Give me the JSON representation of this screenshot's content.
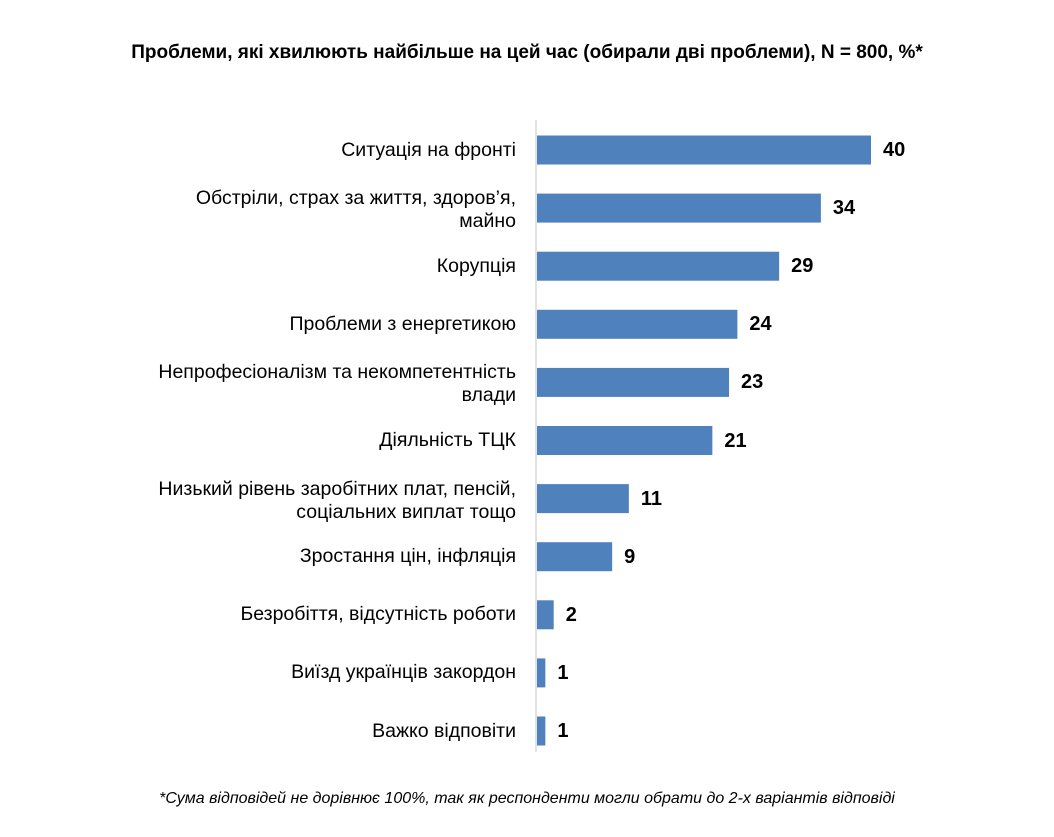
{
  "chart_data": {
    "type": "bar",
    "orientation": "horizontal",
    "title": "Проблеми, які хвилюють найбільше на цей час (обирали дві проблеми), N = 800, %*",
    "categories": [
      "Ситуація на фронті",
      "Обстріли, страх за життя, здоров’я,\nмайно",
      "Корупція",
      "Проблеми з енергетикою",
      "Непрофесіоналізм та некомпетентність\nвлади",
      "Діяльність ТЦК",
      "Низький рівень заробітних плат, пенсій,\nсоціальних виплат тощо",
      "Зростання цін, інфляція",
      "Безробіття, відсутність роботи",
      "Виїзд українців закордон",
      "Важко відповіти"
    ],
    "values": [
      40,
      34,
      29,
      24,
      23,
      21,
      11,
      9,
      2,
      1,
      1
    ],
    "xlim": [
      0,
      40
    ],
    "grid": false,
    "data_labels": true,
    "bar_color": "#4F81BD",
    "footnote": "*Сума відповідей не дорівнює 100%, так як респонденти могли обрати до 2-х варіантів відповіді"
  }
}
